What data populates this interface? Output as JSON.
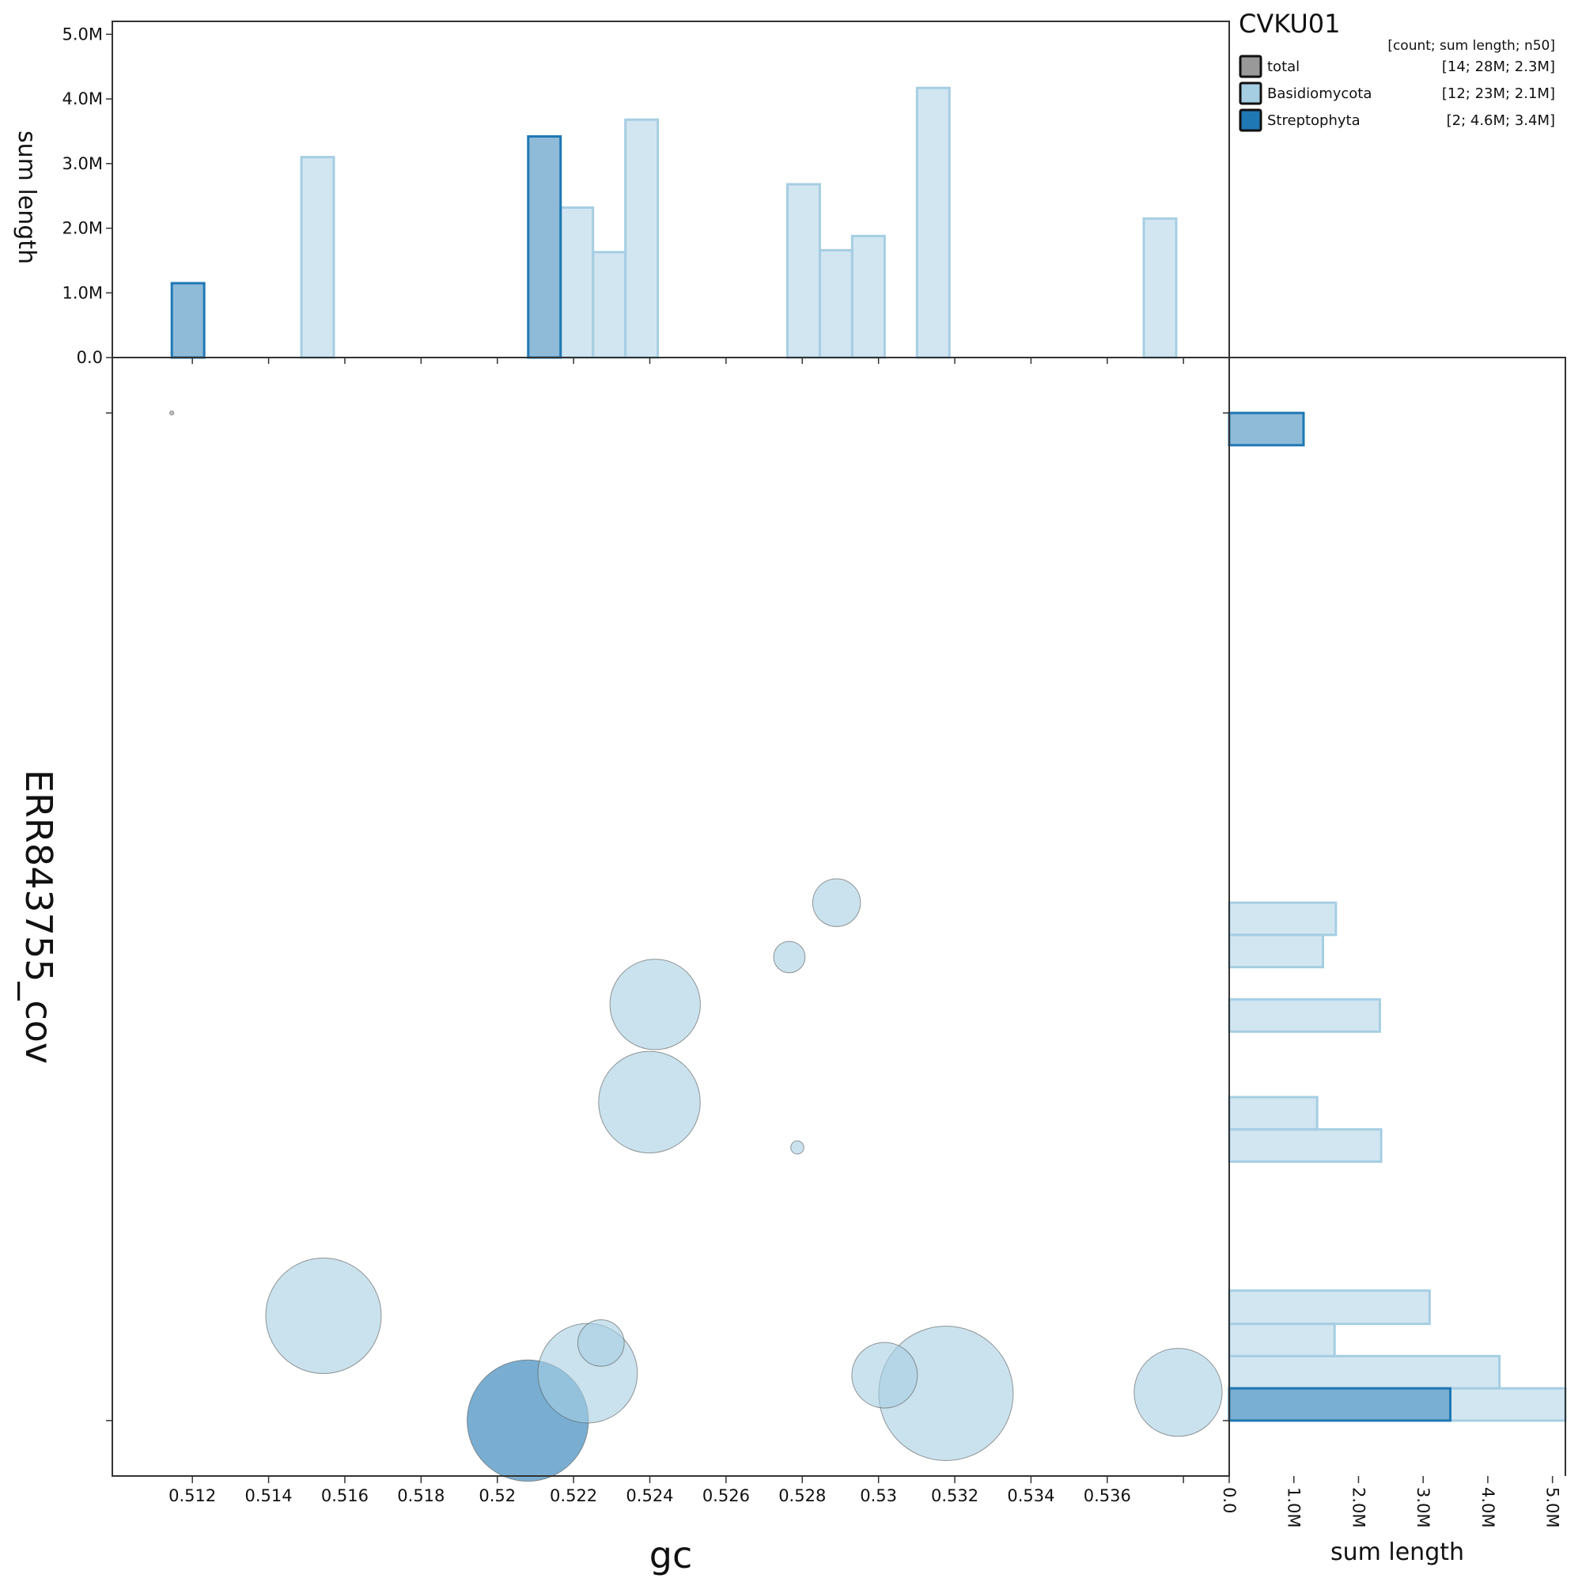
{
  "chart_data": {
    "type": "scatter",
    "title": "CVKU01",
    "xlabel": "gc",
    "ylabel": "ERR843755_cov",
    "hist_value_label": "sum length",
    "legend": {
      "header": "[count; sum length; n50]",
      "entries": [
        {
          "name": "total",
          "stats": "[14; 28M; 2.3M]",
          "color": "#999999"
        },
        {
          "name": "Basidiomycota",
          "stats": "[12; 23M; 2.1M]",
          "color": "#a6cee3"
        },
        {
          "name": "Streptophyta",
          "stats": "[2; 4.6M; 3.4M]",
          "color": "#1f78b4"
        }
      ]
    },
    "x_ticks": [
      {
        "value": 0.512,
        "label": "0.512"
      },
      {
        "value": 0.514,
        "label": "0.514"
      },
      {
        "value": 0.516,
        "label": "0.516"
      },
      {
        "value": 0.518,
        "label": "0.518"
      },
      {
        "value": 0.52,
        "label": "0.52"
      },
      {
        "value": 0.522,
        "label": "0.522"
      },
      {
        "value": 0.524,
        "label": "0.524"
      },
      {
        "value": 0.526,
        "label": "0.526"
      },
      {
        "value": 0.528,
        "label": "0.528"
      },
      {
        "value": 0.53,
        "label": "0.53"
      },
      {
        "value": 0.532,
        "label": "0.532"
      },
      {
        "value": 0.534,
        "label": "0.534"
      },
      {
        "value": 0.536,
        "label": "0.536"
      },
      {
        "value": 0.538,
        "label": ""
      }
    ],
    "xlim": [
      0.5099,
      0.5392
    ],
    "ylim": [
      -0.055,
      1.055
    ],
    "y_ticks": [
      0,
      1
    ],
    "hist_ticks": [
      {
        "value": 0,
        "label": "0.0"
      },
      {
        "value": 1000000,
        "label": "1.0M"
      },
      {
        "value": 2000000,
        "label": "2.0M"
      },
      {
        "value": 3000000,
        "label": "3.0M"
      },
      {
        "value": 4000000,
        "label": "4.0M"
      },
      {
        "value": 5000000,
        "label": "5.0M"
      }
    ],
    "hist_max": 5200000,
    "points": [
      {
        "gc": 0.51146,
        "cov": 1.0,
        "length": 4000,
        "series": "total"
      },
      {
        "gc": 0.51544,
        "cov": 0.104,
        "length": 3100000,
        "series": "Basidiomycota"
      },
      {
        "gc": 0.5208,
        "cov": 0.0,
        "length": 3420000,
        "series": "Streptophyta"
      },
      {
        "gc": 0.52237,
        "cov": 0.047,
        "length": 2300000,
        "series": "Basidiomycota"
      },
      {
        "gc": 0.52272,
        "cov": 0.077,
        "length": 500000,
        "series": "Basidiomycota"
      },
      {
        "gc": 0.52399,
        "cov": 0.316,
        "length": 2400000,
        "series": "Basidiomycota"
      },
      {
        "gc": 0.52414,
        "cov": 0.413,
        "length": 1900000,
        "series": "Basidiomycota"
      },
      {
        "gc": 0.52766,
        "cov": 0.46,
        "length": 230000,
        "series": "Basidiomycota"
      },
      {
        "gc": 0.52787,
        "cov": 0.271,
        "length": 40000,
        "series": "Basidiomycota"
      },
      {
        "gc": 0.5289,
        "cov": 0.514,
        "length": 530000,
        "series": "Basidiomycota"
      },
      {
        "gc": 0.53016,
        "cov": 0.045,
        "length": 1000000,
        "series": "Basidiomycota"
      },
      {
        "gc": 0.53177,
        "cov": 0.027,
        "length": 4200000,
        "series": "Basidiomycota"
      },
      {
        "gc": 0.53786,
        "cov": 0.028,
        "length": 1800000,
        "series": "Basidiomycota"
      }
    ],
    "top_histogram": [
      {
        "series": "Streptophyta",
        "bins": [
          [
            0.51146,
            0.51231,
            1150000
          ],
          [
            0.52081,
            0.52166,
            3420000
          ]
        ]
      },
      {
        "series": "Basidiomycota",
        "bins": [
          [
            0.51486,
            0.51571,
            3100000
          ],
          [
            0.52166,
            0.52251,
            2320000
          ],
          [
            0.52251,
            0.52336,
            1630000
          ],
          [
            0.52336,
            0.52421,
            3680000
          ],
          [
            0.52761,
            0.52846,
            2680000
          ],
          [
            0.52846,
            0.52931,
            1660000
          ],
          [
            0.52931,
            0.53016,
            1880000
          ],
          [
            0.53101,
            0.53186,
            4170000
          ],
          [
            0.53696,
            0.53781,
            2150000
          ]
        ]
      }
    ],
    "side_histogram": [
      {
        "series": "Streptophyta",
        "bins": [
          [
            0.968,
            1.0,
            1150000
          ],
          [
            0.0,
            0.032,
            3420000
          ]
        ]
      },
      {
        "series": "Basidiomycota",
        "bins": [
          [
            0.482,
            0.514,
            1650000
          ],
          [
            0.45,
            0.482,
            1450000
          ],
          [
            0.386,
            0.418,
            2330000
          ],
          [
            0.257,
            0.289,
            2350000
          ],
          [
            0.289,
            0.321,
            1360000
          ],
          [
            0.096,
            0.129,
            3100000
          ],
          [
            0.064,
            0.096,
            1630000
          ],
          [
            0.032,
            0.064,
            4180000
          ],
          [
            0.0,
            0.032,
            5200000
          ]
        ]
      }
    ]
  }
}
